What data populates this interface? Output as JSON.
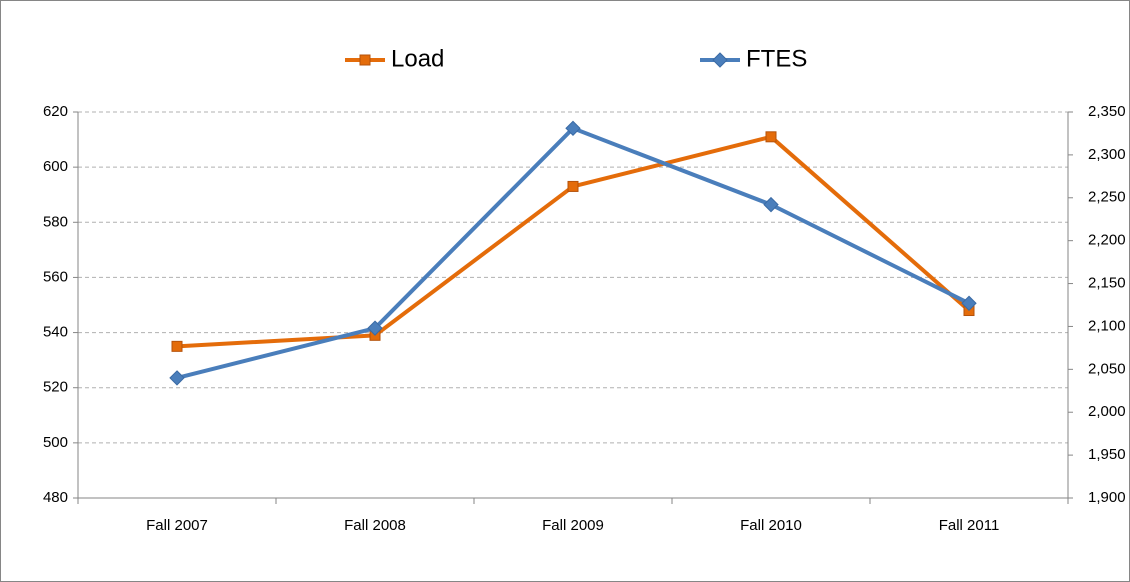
{
  "chart_data": {
    "type": "line",
    "categories": [
      "Fall 2007",
      "Fall 2008",
      "Fall 2009",
      "Fall 2010",
      "Fall 2011"
    ],
    "series": [
      {
        "name": "Load",
        "color": "#e46c0a",
        "values": [
          535,
          539,
          593,
          611,
          548
        ]
      },
      {
        "name": "FTES",
        "color": "#4a7ebb",
        "axis": "y2",
        "values": [
          2040,
          2098,
          2331,
          2242,
          2127
        ]
      }
    ],
    "ylim": [
      480,
      620
    ],
    "yticks": [
      480,
      500,
      520,
      540,
      560,
      580,
      600,
      620
    ],
    "y2lim": [
      1900,
      2350
    ],
    "y2ticks": [
      {
        "value": 1900,
        "label": "1,900"
      },
      {
        "value": 1950,
        "label": "1,950"
      },
      {
        "value": 2000,
        "label": "2,000"
      },
      {
        "value": 2050,
        "label": "2,050"
      },
      {
        "value": 2100,
        "label": "2,100"
      },
      {
        "value": 2150,
        "label": "2,150"
      },
      {
        "value": 2200,
        "label": "2,200"
      },
      {
        "value": 2250,
        "label": "2,250"
      },
      {
        "value": 2300,
        "label": "2,300"
      },
      {
        "value": 2350,
        "label": "2,350"
      }
    ],
    "grid": true,
    "legend": "top"
  }
}
